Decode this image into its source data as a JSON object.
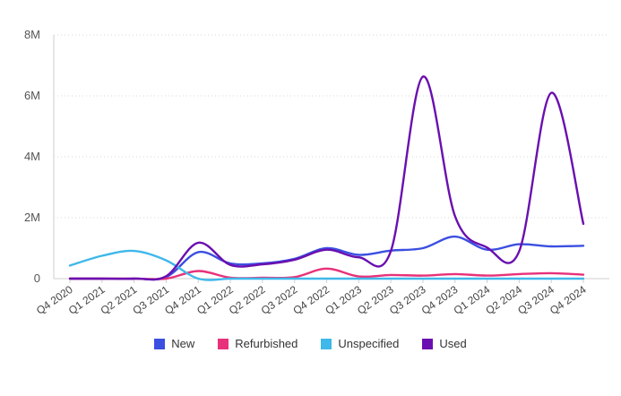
{
  "chart_data": {
    "type": "line",
    "title": "",
    "xlabel": "",
    "ylabel": "",
    "categories": [
      "Q4 2020",
      "Q1 2021",
      "Q2 2021",
      "Q3 2021",
      "Q4 2021",
      "Q1 2022",
      "Q2 2022",
      "Q3 2022",
      "Q4 2022",
      "Q1 2023",
      "Q2 2023",
      "Q3 2023",
      "Q4 2023",
      "Q1 2024",
      "Q2 2024",
      "Q3 2024",
      "Q4 2024"
    ],
    "ylim": [
      0,
      8000000
    ],
    "yticks": [
      0,
      2000000,
      4000000,
      6000000,
      8000000
    ],
    "ytick_labels": [
      "0",
      "2M",
      "4M",
      "6M",
      "8M"
    ],
    "grid": true,
    "legend_position": "bottom",
    "series": [
      {
        "name": "New",
        "color": "#3b4fe0",
        "values": [
          0,
          0,
          0,
          50000,
          870000,
          500000,
          500000,
          650000,
          1000000,
          780000,
          920000,
          1000000,
          1380000,
          950000,
          1130000,
          1060000,
          1080000
        ]
      },
      {
        "name": "Refurbished",
        "color": "#e8317a",
        "values": [
          0,
          0,
          0,
          0,
          250000,
          30000,
          30000,
          50000,
          330000,
          70000,
          120000,
          100000,
          150000,
          100000,
          150000,
          180000,
          130000
        ]
      },
      {
        "name": "Unspecified",
        "color": "#3fb8ea",
        "values": [
          430000,
          750000,
          910000,
          600000,
          0,
          0,
          0,
          0,
          0,
          0,
          0,
          0,
          0,
          0,
          0,
          0,
          0
        ]
      },
      {
        "name": "Used",
        "color": "#6a0fb0",
        "values": [
          0,
          0,
          0,
          80000,
          1180000,
          450000,
          470000,
          620000,
          950000,
          700000,
          900000,
          6630000,
          2050000,
          1020000,
          900000,
          6100000,
          1800000
        ]
      }
    ]
  }
}
